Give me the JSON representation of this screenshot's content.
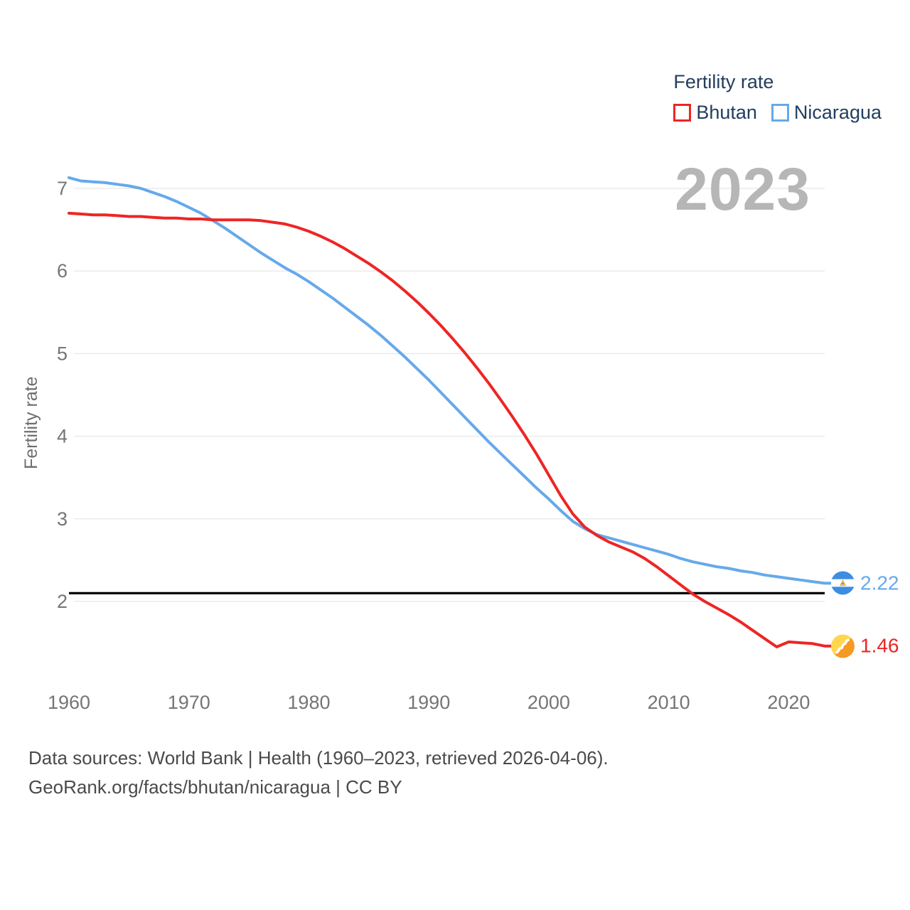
{
  "legend": {
    "title": "Fertility rate"
  },
  "watermark": "2023",
  "colors": {
    "bhutan": "#ee2524",
    "nicaragua": "#66a9ea",
    "replacement_line": "#000000",
    "watermark": "#b6b6b6",
    "axis_text": "#757575",
    "legend_text": "#223e5e",
    "footer_text": "#4a4a4a",
    "gridline": "#ebebeb"
  },
  "chart_data": {
    "type": "line",
    "title": "Fertility rate",
    "xlabel": "",
    "ylabel": "Fertility rate",
    "xlim": [
      1960,
      2023
    ],
    "ylim": [
      1.3,
      7.3
    ],
    "x_ticks": [
      1960,
      1970,
      1980,
      1990,
      2000,
      2010,
      2020
    ],
    "y_ticks": [
      2,
      3,
      4,
      5,
      6,
      7
    ],
    "grid": "horizontal",
    "legend_position": "top-right",
    "replacement_line_value": 2.1,
    "x": [
      1960,
      1961,
      1962,
      1963,
      1964,
      1965,
      1966,
      1967,
      1968,
      1969,
      1970,
      1971,
      1972,
      1973,
      1974,
      1975,
      1976,
      1977,
      1978,
      1979,
      1980,
      1981,
      1982,
      1983,
      1984,
      1985,
      1986,
      1987,
      1988,
      1989,
      1990,
      1991,
      1992,
      1993,
      1994,
      1995,
      1996,
      1997,
      1998,
      1999,
      2000,
      2001,
      2002,
      2003,
      2004,
      2005,
      2006,
      2007,
      2008,
      2009,
      2010,
      2011,
      2012,
      2013,
      2014,
      2015,
      2016,
      2017,
      2018,
      2019,
      2020,
      2021,
      2022,
      2023
    ],
    "series": [
      {
        "name": "Bhutan",
        "color": "#ee2524",
        "end_label": "1.46",
        "values": [
          6.7,
          6.69,
          6.68,
          6.68,
          6.67,
          6.66,
          6.66,
          6.65,
          6.64,
          6.64,
          6.63,
          6.63,
          6.62,
          6.62,
          6.62,
          6.62,
          6.61,
          6.59,
          6.57,
          6.53,
          6.48,
          6.42,
          6.35,
          6.27,
          6.18,
          6.09,
          5.99,
          5.88,
          5.76,
          5.63,
          5.49,
          5.34,
          5.18,
          5.01,
          4.83,
          4.64,
          4.44,
          4.23,
          4.01,
          3.78,
          3.53,
          3.28,
          3.06,
          2.9,
          2.8,
          2.72,
          2.66,
          2.6,
          2.52,
          2.42,
          2.31,
          2.2,
          2.09,
          2.0,
          1.92,
          1.84,
          1.75,
          1.65,
          1.55,
          1.45,
          1.51,
          1.5,
          1.49,
          1.46
        ]
      },
      {
        "name": "Nicaragua",
        "color": "#66a9ea",
        "end_label": "2.22",
        "values": [
          7.13,
          7.09,
          7.08,
          7.07,
          7.05,
          7.03,
          7.0,
          6.95,
          6.9,
          6.84,
          6.77,
          6.7,
          6.61,
          6.52,
          6.42,
          6.32,
          6.22,
          6.13,
          6.04,
          5.96,
          5.87,
          5.77,
          5.67,
          5.56,
          5.45,
          5.34,
          5.22,
          5.09,
          4.96,
          4.82,
          4.68,
          4.53,
          4.38,
          4.23,
          4.08,
          3.93,
          3.79,
          3.65,
          3.51,
          3.37,
          3.24,
          3.1,
          2.97,
          2.88,
          2.81,
          2.77,
          2.73,
          2.69,
          2.65,
          2.61,
          2.57,
          2.52,
          2.48,
          2.45,
          2.42,
          2.4,
          2.37,
          2.35,
          2.32,
          2.3,
          2.28,
          2.26,
          2.24,
          2.22
        ]
      }
    ]
  },
  "footer": {
    "line1": "Data sources: World Bank | Health (1960–2023, retrieved 2026-04-06).",
    "line2": "GeoRank.org/facts/bhutan/nicaragua | CC BY"
  }
}
